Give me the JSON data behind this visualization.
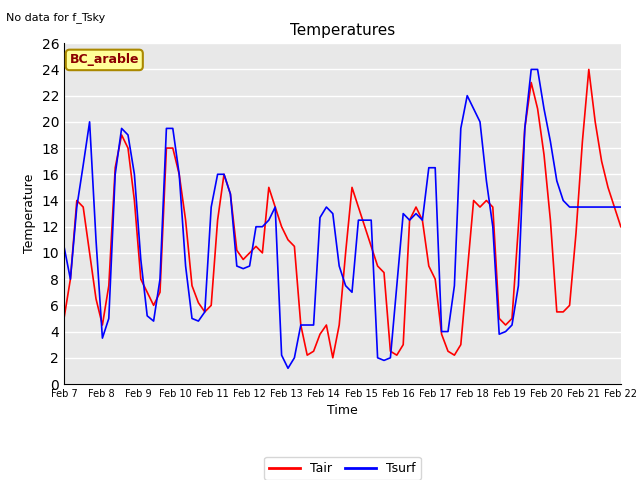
{
  "title": "Temperatures",
  "xlabel": "Time",
  "ylabel": "Temperature",
  "top_left_text": "No data for f_Tsky",
  "legend_box_text": "BC_arable",
  "legend_box_color": "#ffff99",
  "legend_box_edge": "#aa8800",
  "ylim": [
    0,
    26
  ],
  "yticks": [
    0,
    2,
    4,
    6,
    8,
    10,
    12,
    14,
    16,
    18,
    20,
    22,
    24,
    26
  ],
  "xtick_labels": [
    "Feb 7",
    "Feb 8",
    "Feb 9",
    "Feb 10",
    "Feb 11",
    "Feb 12",
    "Feb 13",
    "Feb 14",
    "Feb 15",
    "Feb 16",
    "Feb 17",
    "Feb 18",
    "Feb 19",
    "Feb 20",
    "Feb 21",
    "Feb 22"
  ],
  "background_color": "#e8e8e8",
  "grid_color": "#ffffff",
  "tair_color": "#ff0000",
  "tsurf_color": "#0000ff",
  "line_width": 1.2,
  "tair": [
    5.0,
    8.0,
    14.0,
    13.5,
    10.0,
    6.5,
    4.5,
    7.5,
    16.5,
    19.0,
    18.0,
    14.0,
    8.0,
    7.0,
    6.0,
    7.0,
    18.0,
    18.0,
    16.0,
    12.5,
    7.5,
    6.2,
    5.5,
    6.0,
    12.5,
    16.0,
    14.5,
    10.2,
    9.5,
    10.0,
    10.5,
    10.0,
    15.0,
    13.5,
    12.0,
    11.0,
    10.5,
    4.5,
    2.2,
    2.5,
    3.8,
    4.5,
    2.0,
    4.5,
    10.0,
    15.0,
    13.5,
    12.0,
    10.5,
    9.0,
    8.5,
    2.5,
    2.2,
    3.0,
    12.5,
    13.5,
    12.5,
    9.0,
    8.0,
    3.8,
    2.5,
    2.2,
    3.0,
    8.5,
    14.0,
    13.5,
    14.0,
    13.5,
    5.0,
    4.5,
    5.0,
    12.0,
    19.5,
    23.0,
    21.0,
    17.5,
    12.5,
    5.5,
    5.5,
    6.0,
    11.5,
    18.5,
    24.0,
    20.0,
    17.0,
    15.0,
    13.5,
    12.0
  ],
  "tsurf": [
    10.5,
    8.0,
    13.5,
    16.7,
    20.0,
    11.0,
    3.5,
    5.0,
    16.0,
    19.5,
    19.0,
    16.0,
    9.5,
    5.2,
    4.8,
    8.0,
    19.5,
    19.5,
    16.0,
    9.0,
    5.0,
    4.8,
    5.5,
    13.5,
    16.0,
    16.0,
    14.5,
    9.0,
    8.8,
    9.0,
    12.0,
    12.0,
    12.5,
    13.5,
    2.2,
    1.2,
    2.0,
    4.5,
    4.5,
    4.5,
    12.7,
    13.5,
    13.0,
    9.0,
    7.5,
    7.0,
    12.5,
    12.5,
    12.5,
    2.0,
    1.8,
    2.0,
    7.5,
    13.0,
    12.5,
    13.0,
    12.5,
    16.5,
    16.5,
    4.0,
    4.0,
    7.5,
    19.5,
    22.0,
    21.0,
    20.0,
    15.5,
    12.0,
    3.8,
    4.0,
    4.5,
    7.5,
    19.5,
    24.0,
    24.0,
    21.0,
    18.5,
    15.5,
    14.0,
    13.5,
    13.5,
    13.5,
    13.5,
    13.5,
    13.5,
    13.5,
    13.5,
    13.5
  ]
}
